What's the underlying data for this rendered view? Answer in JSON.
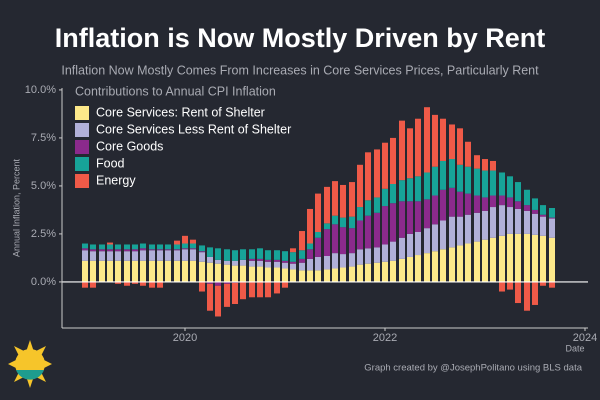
{
  "chart_data": {
    "type": "stacked-bar",
    "title": "Inflation is Now Mostly Driven by Rent",
    "subtitle": "Inflation Now Mostly Comes From Increases in Core Services Prices, Particularly Rent",
    "legend_title": "Contributions to Annual CPI Inflation",
    "y_label": "Annual Inflation, Percent",
    "x_label": "Date",
    "source": "Graph created by @JosephPolitano using BLS data",
    "legend": "upper left",
    "grid": false,
    "x": [
      2019.0,
      2019.08,
      2019.17,
      2019.25,
      2019.33,
      2019.42,
      2019.5,
      2019.58,
      2019.67,
      2019.75,
      2019.83,
      2019.92,
      2020.0,
      2020.08,
      2020.17,
      2020.25,
      2020.33,
      2020.42,
      2020.5,
      2020.58,
      2020.67,
      2020.75,
      2020.83,
      2020.92,
      2021.0,
      2021.08,
      2021.17,
      2021.25,
      2021.33,
      2021.42,
      2021.5,
      2021.58,
      2021.67,
      2021.75,
      2021.83,
      2021.92,
      2022.0,
      2022.08,
      2022.17,
      2022.25,
      2022.33,
      2022.42,
      2022.5,
      2022.58,
      2022.67,
      2022.75,
      2022.83,
      2022.92,
      2023.0,
      2023.08,
      2023.17,
      2023.25,
      2023.33,
      2023.42,
      2023.5,
      2023.58,
      2023.67
    ],
    "xlim": [
      2018.77,
      2024.03
    ],
    "xticks": [
      2020,
      2022,
      2024
    ],
    "ylim": [
      -2.4,
      10.1
    ],
    "yticks": [
      {
        "value": 0,
        "label": "0.0%"
      },
      {
        "value": 2.5,
        "label": "2.5%"
      },
      {
        "value": 5,
        "label": "5.0%"
      },
      {
        "value": 7.5,
        "label": "7.5%"
      },
      {
        "value": 10,
        "label": "10.0%"
      }
    ],
    "series": [
      {
        "name": "Core Services: Rent of Shelter",
        "color": "#fde98a",
        "values": [
          1.1,
          1.1,
          1.1,
          1.1,
          1.1,
          1.1,
          1.1,
          1.1,
          1.1,
          1.1,
          1.1,
          1.1,
          1.1,
          1.1,
          1.05,
          1.0,
          0.95,
          0.9,
          0.85,
          0.85,
          0.8,
          0.8,
          0.75,
          0.75,
          0.7,
          0.65,
          0.6,
          0.6,
          0.6,
          0.65,
          0.7,
          0.75,
          0.8,
          0.9,
          0.95,
          1.0,
          1.05,
          1.1,
          1.2,
          1.3,
          1.4,
          1.5,
          1.6,
          1.7,
          1.8,
          1.9,
          2.0,
          2.1,
          2.2,
          2.3,
          2.4,
          2.5,
          2.5,
          2.5,
          2.45,
          2.4,
          2.3
        ]
      },
      {
        "name": "Core Services Less Rent of Shelter",
        "color": "#b1b0d8",
        "values": [
          0.55,
          0.5,
          0.5,
          0.5,
          0.5,
          0.5,
          0.5,
          0.55,
          0.55,
          0.55,
          0.55,
          0.55,
          0.6,
          0.6,
          0.5,
          0.3,
          0.2,
          0.2,
          0.25,
          0.3,
          0.3,
          0.3,
          0.3,
          0.3,
          0.3,
          0.3,
          0.4,
          0.6,
          0.7,
          0.7,
          0.8,
          0.7,
          0.7,
          0.8,
          0.8,
          0.8,
          0.9,
          1.0,
          1.1,
          1.2,
          1.2,
          1.3,
          1.4,
          1.5,
          1.6,
          1.5,
          1.5,
          1.5,
          1.5,
          1.6,
          1.6,
          1.4,
          1.3,
          1.2,
          1.1,
          1.0,
          1.0
        ]
      },
      {
        "name": "Core Goods",
        "color": "#8b2a8c",
        "values": [
          0.1,
          0.1,
          0.1,
          0.1,
          0.1,
          0.1,
          0.1,
          0.1,
          0.05,
          0.05,
          0.05,
          0.05,
          0.05,
          0.05,
          0.05,
          -0.1,
          -0.2,
          -0.1,
          -0.05,
          0.0,
          0.1,
          0.1,
          0.1,
          0.1,
          0.1,
          0.1,
          0.2,
          0.5,
          1.0,
          1.4,
          1.5,
          1.4,
          1.3,
          1.5,
          1.7,
          1.8,
          2.0,
          2.0,
          1.9,
          1.7,
          1.6,
          1.5,
          1.5,
          1.6,
          1.5,
          1.3,
          1.1,
          0.9,
          0.7,
          0.6,
          0.5,
          0.5,
          0.4,
          0.3,
          0.2,
          0.1,
          0.05
        ]
      },
      {
        "name": "Food",
        "color": "#17a398",
        "values": [
          0.25,
          0.25,
          0.25,
          0.25,
          0.25,
          0.25,
          0.25,
          0.25,
          0.25,
          0.25,
          0.25,
          0.25,
          0.25,
          0.25,
          0.3,
          0.5,
          0.6,
          0.6,
          0.55,
          0.55,
          0.5,
          0.55,
          0.5,
          0.5,
          0.5,
          0.5,
          0.45,
          0.3,
          0.3,
          0.3,
          0.45,
          0.5,
          0.6,
          0.7,
          0.8,
          0.8,
          0.9,
          1.0,
          1.1,
          1.2,
          1.3,
          1.4,
          1.5,
          1.5,
          1.5,
          1.4,
          1.4,
          1.4,
          1.4,
          1.3,
          1.2,
          1.1,
          1.0,
          0.8,
          0.6,
          0.5,
          0.5
        ]
      },
      {
        "name": "Energy",
        "color": "#ef5a48",
        "values": [
          -0.3,
          -0.3,
          0.0,
          0.1,
          -0.1,
          -0.2,
          -0.1,
          -0.2,
          -0.3,
          -0.3,
          0.0,
          0.2,
          0.4,
          0.2,
          -0.5,
          -1.4,
          -1.6,
          -1.2,
          -1.1,
          -0.9,
          -0.8,
          -0.8,
          -0.8,
          -0.6,
          -0.3,
          0.2,
          1.0,
          1.8,
          2.0,
          1.9,
          1.8,
          1.7,
          1.8,
          2.2,
          2.5,
          2.5,
          2.4,
          2.4,
          3.1,
          2.6,
          3.0,
          3.4,
          2.7,
          2.2,
          1.8,
          1.9,
          1.3,
          0.7,
          0.6,
          0.5,
          -0.5,
          -0.4,
          -1.1,
          -1.5,
          -1.2,
          -0.2,
          -0.3
        ]
      }
    ]
  }
}
